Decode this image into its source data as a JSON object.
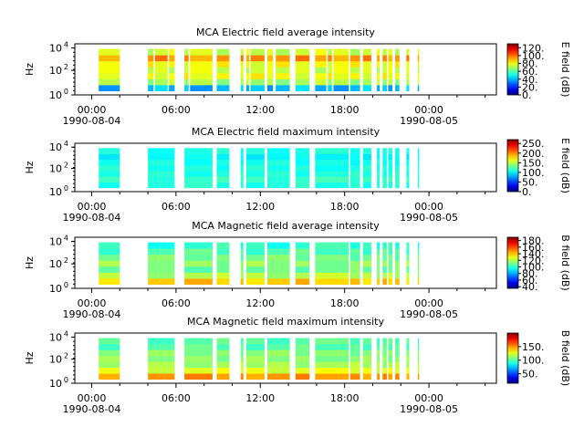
{
  "chart_data": [
    {
      "type": "heatmap",
      "title": "MCA  Electric field average intensity",
      "ylabel": "Hz",
      "colorbar_label": "E field (dB)",
      "yticks": [
        "10",
        "10",
        "10"
      ],
      "yticks_exp": [
        "0",
        "2",
        "4"
      ],
      "colorbar_ticks": [
        "0.",
        "20.",
        "40.",
        "60.",
        "80.",
        "100.",
        "120."
      ],
      "colorbar_range": [
        0,
        130
      ],
      "xticks": [
        {
          "time": "00:00",
          "date": "1990-08-04"
        },
        {
          "time": "06:00",
          "date": ""
        },
        {
          "time": "12:00",
          "date": ""
        },
        {
          "time": "18:00",
          "date": ""
        },
        {
          "time": "00:00",
          "date": "1990-08-05"
        }
      ],
      "data_blocks_hours": [
        [
          0.5,
          2.0
        ],
        [
          4.0,
          4.4
        ],
        [
          4.5,
          5.4
        ],
        [
          5.5,
          5.9
        ],
        [
          6.6,
          6.9
        ],
        [
          7.0,
          8.6
        ],
        [
          8.9,
          9.8
        ],
        [
          10.6,
          10.8
        ],
        [
          11.0,
          11.2
        ],
        [
          11.3,
          12.3
        ],
        [
          12.5,
          12.9
        ],
        [
          13.1,
          14.1
        ],
        [
          14.5,
          15.5
        ],
        [
          15.9,
          16.7
        ],
        [
          16.8,
          17.1
        ],
        [
          17.2,
          18.3
        ],
        [
          18.4,
          19.1
        ],
        [
          19.3,
          19.9
        ],
        [
          20.3,
          20.5
        ],
        [
          20.7,
          21.0
        ],
        [
          21.1,
          21.4
        ],
        [
          21.6,
          21.9
        ],
        [
          22.4,
          22.6
        ],
        [
          23.2,
          23.3
        ]
      ],
      "band_values_db": [
        40,
        70,
        80,
        75,
        80,
        95,
        75
      ]
    },
    {
      "type": "heatmap",
      "title": "MCA  Electric field maximum intensity",
      "ylabel": "Hz",
      "colorbar_label": "E field (dB)",
      "yticks": [
        "10",
        "10",
        "10"
      ],
      "yticks_exp": [
        "0",
        "2",
        "4"
      ],
      "colorbar_ticks": [
        "0.",
        "50.",
        "100.",
        "150.",
        "200.",
        "250."
      ],
      "colorbar_range": [
        0,
        270
      ],
      "xticks": [
        {
          "time": "00:00",
          "date": "1990-08-04"
        },
        {
          "time": "06:00",
          "date": ""
        },
        {
          "time": "12:00",
          "date": ""
        },
        {
          "time": "18:00",
          "date": ""
        },
        {
          "time": "00:00",
          "date": "1990-08-05"
        }
      ],
      "data_blocks_hours": [
        [
          0.5,
          2.0
        ],
        [
          4.0,
          5.9
        ],
        [
          6.6,
          8.6
        ],
        [
          8.9,
          9.8
        ],
        [
          10.6,
          10.8
        ],
        [
          11.0,
          12.3
        ],
        [
          12.5,
          14.1
        ],
        [
          14.5,
          15.5
        ],
        [
          15.9,
          18.3
        ],
        [
          18.4,
          19.1
        ],
        [
          19.3,
          19.9
        ],
        [
          20.3,
          20.5
        ],
        [
          20.7,
          21.0
        ],
        [
          21.1,
          21.4
        ],
        [
          21.6,
          21.9
        ],
        [
          22.4,
          22.6
        ],
        [
          23.2,
          23.3
        ]
      ],
      "band_values_db": [
        110,
        115,
        110,
        108,
        105,
        100,
        108
      ]
    },
    {
      "type": "heatmap",
      "title": "MCA  Magnetic field average intensity",
      "ylabel": "Hz",
      "colorbar_label": "B field (dB)",
      "yticks": [
        "10",
        "10",
        "10"
      ],
      "yticks_exp": [
        "0",
        "2",
        "4"
      ],
      "colorbar_ticks": [
        "40.",
        "60.",
        "80.",
        "100.",
        "120.",
        "140.",
        "160.",
        "180."
      ],
      "colorbar_range": [
        35,
        190
      ],
      "xticks": [
        {
          "time": "00:00",
          "date": "1990-08-04"
        },
        {
          "time": "06:00",
          "date": ""
        },
        {
          "time": "12:00",
          "date": ""
        },
        {
          "time": "18:00",
          "date": ""
        },
        {
          "time": "00:00",
          "date": "1990-08-05"
        }
      ],
      "data_blocks_hours": [
        [
          0.5,
          2.0
        ],
        [
          4.0,
          5.9
        ],
        [
          6.6,
          8.6
        ],
        [
          8.9,
          9.8
        ],
        [
          10.6,
          10.8
        ],
        [
          11.0,
          12.3
        ],
        [
          12.5,
          14.1
        ],
        [
          14.5,
          15.5
        ],
        [
          15.9,
          18.3
        ],
        [
          18.4,
          19.1
        ],
        [
          19.3,
          19.9
        ],
        [
          20.3,
          20.5
        ],
        [
          20.7,
          21.0
        ],
        [
          21.1,
          21.4
        ],
        [
          21.6,
          21.9
        ],
        [
          22.4,
          22.6
        ],
        [
          23.2,
          23.3
        ]
      ],
      "band_values_db": [
        140,
        120,
        110,
        115,
        110,
        105,
        100
      ]
    },
    {
      "type": "heatmap",
      "title": "MCA  Magnetic field maximum intensity",
      "ylabel": "Hz",
      "colorbar_label": "B field (dB)",
      "yticks": [
        "10",
        "10",
        "10"
      ],
      "yticks_exp": [
        "0",
        "2",
        "4"
      ],
      "colorbar_ticks": [
        "50.",
        "100.",
        "150."
      ],
      "colorbar_range": [
        15,
        200
      ],
      "xticks": [
        {
          "time": "00:00",
          "date": "1990-08-04"
        },
        {
          "time": "06:00",
          "date": ""
        },
        {
          "time": "12:00",
          "date": ""
        },
        {
          "time": "18:00",
          "date": ""
        },
        {
          "time": "00:00",
          "date": "1990-08-05"
        }
      ],
      "data_blocks_hours": [
        [
          0.5,
          2.0
        ],
        [
          4.0,
          5.9
        ],
        [
          6.6,
          8.6
        ],
        [
          8.9,
          9.8
        ],
        [
          10.6,
          10.8
        ],
        [
          11.0,
          12.3
        ],
        [
          12.5,
          14.1
        ],
        [
          14.5,
          15.5
        ],
        [
          15.9,
          18.3
        ],
        [
          18.4,
          19.1
        ],
        [
          19.3,
          19.9
        ],
        [
          20.3,
          20.5
        ],
        [
          20.7,
          21.0
        ],
        [
          21.1,
          21.4
        ],
        [
          21.6,
          21.9
        ],
        [
          22.4,
          22.6
        ],
        [
          23.2,
          23.3
        ]
      ],
      "band_values_db": [
        150,
        125,
        115,
        110,
        108,
        100,
        100
      ]
    }
  ]
}
